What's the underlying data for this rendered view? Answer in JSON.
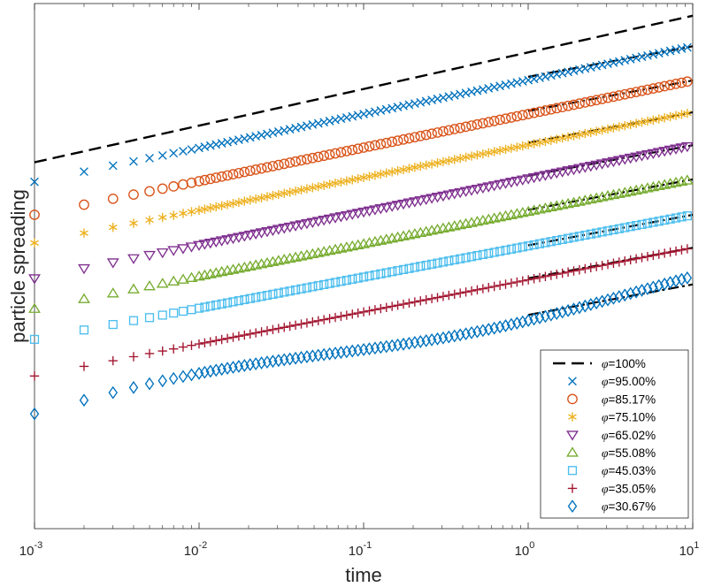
{
  "chart_data": {
    "type": "scatter",
    "title": "",
    "xlabel": "time",
    "ylabel": "particle spreading",
    "xscale": "log",
    "yscale": "log",
    "xlim": [
      0.001,
      10
    ],
    "ylim_log10": [
      -4.0,
      0.3
    ],
    "xticks": [
      {
        "base": "10",
        "exp": "-3",
        "value": 0.001
      },
      {
        "base": "10",
        "exp": "-2",
        "value": 0.01
      },
      {
        "base": "10",
        "exp": "-1",
        "value": 0.1
      },
      {
        "base": "10",
        "exp": "0",
        "value": 1
      },
      {
        "base": "10",
        "exp": "1",
        "value": 10
      }
    ],
    "yticks_visible": false,
    "grid": false,
    "legend_position": "bottom-right",
    "legend_phi_symbol": "φ",
    "reference_line": {
      "name": "φ=100%",
      "label_prefix": "=",
      "label_value": "100%",
      "style": "dashed",
      "color": "#000000",
      "x": [
        0.001,
        10
      ],
      "log10_y": [
        -1.0,
        0.2
      ]
    },
    "series": [
      {
        "name": "φ=95.00%",
        "label_prefix": "=",
        "label_value": "95.00%",
        "marker": "x",
        "color": "#0072BD",
        "log10_y0": -1.16,
        "log10_y_end": -0.05,
        "slope_fit": 0.25,
        "offset_fit": -0.3
      },
      {
        "name": "φ=85.17%",
        "label_prefix": "=",
        "label_value": "85.17%",
        "marker": "o",
        "color": "#D95319",
        "log10_y0": -1.43,
        "log10_y_end": -0.33,
        "slope_fit": 0.25,
        "offset_fit": -0.58
      },
      {
        "name": "φ=75.10%",
        "label_prefix": "=",
        "label_value": "75.10%",
        "marker": "asterisk",
        "color": "#EDB120",
        "log10_y0": -1.66,
        "log10_y_end": -0.59,
        "slope_fit": 0.25,
        "offset_fit": -0.84
      },
      {
        "name": "φ=65.02%",
        "label_prefix": "=",
        "label_value": "65.02%",
        "marker": "triangle-down",
        "color": "#7E2F8E",
        "log10_y0": -1.95,
        "log10_y_end": -0.86,
        "slope_fit": 0.25,
        "offset_fit": -1.11
      },
      {
        "name": "φ=55.08%",
        "label_prefix": "=",
        "label_value": "55.08%",
        "marker": "triangle-up",
        "color": "#77AC30",
        "log10_y0": -2.2,
        "log10_y_end": -1.14,
        "slope_fit": 0.25,
        "offset_fit": -1.39
      },
      {
        "name": "φ=45.03%",
        "label_prefix": "=",
        "label_value": "45.03%",
        "marker": "square",
        "color": "#4DBEEE",
        "log10_y0": -2.45,
        "log10_y_end": -1.43,
        "slope_fit": 0.25,
        "offset_fit": -1.68
      },
      {
        "name": "φ=35.05%",
        "label_prefix": "=",
        "label_value": "35.05%",
        "marker": "plus",
        "color": "#A2142F",
        "log10_y0": -2.75,
        "log10_y_end": -1.7,
        "slope_fit": 0.25,
        "offset_fit": -1.95
      },
      {
        "name": "φ=30.67%",
        "label_prefix": "=",
        "label_value": "30.67%",
        "marker": "diamond",
        "color": "#0072BD",
        "log10_y0": -3.06,
        "log10_y_end": -1.97,
        "slope_fit": 0.25,
        "offset_fit": -2.25
      }
    ],
    "fit_lines": {
      "style": "dash-dot",
      "color": "#000000",
      "x": [
        1,
        10
      ]
    }
  }
}
